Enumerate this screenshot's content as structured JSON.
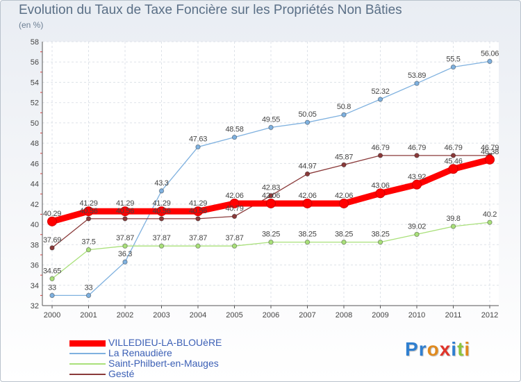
{
  "title": "Evolution du Taux de Taxe Foncière sur les Propriétés Non Bâties",
  "unit_label": "(en %)",
  "brand": {
    "letters": [
      "P",
      "r",
      "o",
      "x",
      "i",
      "t",
      "i"
    ],
    "colors": [
      "#2f7fd0",
      "#2f7fd0",
      "#e08a1e",
      "#e0342a",
      "#2f7fd0",
      "#8cc63e",
      "#e08a1e"
    ]
  },
  "chart_data": {
    "type": "line",
    "title": "Evolution du Taux de Taxe Foncière sur les Propriétés Non Bâties",
    "ylabel": "(en %)",
    "xlabel": "",
    "x": [
      "2000",
      "2001",
      "2002",
      "2003",
      "2004",
      "2005",
      "2006",
      "2007",
      "2008",
      "2009",
      "2010",
      "2011",
      "2012"
    ],
    "ylim": [
      32,
      58
    ],
    "yticks": [
      "32",
      "34",
      "36",
      "38",
      "40",
      "42",
      "44",
      "46",
      "48",
      "50",
      "52",
      "54",
      "56",
      "58"
    ],
    "grid": true,
    "legend_position": "bottom-left",
    "series": [
      {
        "name": "VILLEDIEU-LA-BLOUèRE",
        "color": "#ff0000",
        "values": [
          40.29,
          41.29,
          41.29,
          41.29,
          41.29,
          42.06,
          42.06,
          42.06,
          42.06,
          43.06,
          43.92,
          45.46,
          46.38
        ],
        "labels": [
          "40.29",
          "41.29",
          "41.29",
          "41.29",
          "41.29",
          "42.06",
          "42.06",
          "42.06",
          "42.06",
          "43.06",
          "43.92",
          "45.46",
          "46.38"
        ]
      },
      {
        "name": "La Renaudière",
        "color": "#7fb1df",
        "values": [
          33,
          33,
          36.3,
          43.3,
          47.63,
          48.58,
          49.55,
          50.05,
          50.8,
          52.32,
          53.89,
          55.5,
          56.06
        ],
        "labels": [
          "33",
          "33",
          "36.3",
          "43.3",
          "47.63",
          "48.58",
          "49.55",
          "50.05",
          "50.8",
          "52.32",
          "53.89",
          "55.5",
          "56.06"
        ]
      },
      {
        "name": "Saint-Philbert-en-Mauges",
        "color": "#a9e07a",
        "values": [
          34.65,
          37.5,
          37.87,
          37.87,
          37.87,
          37.87,
          38.25,
          38.25,
          38.25,
          38.25,
          39.02,
          39.8,
          40.2
        ],
        "labels": [
          "34.65",
          "37.5",
          "37.87",
          "37.87",
          "37.87",
          "37.87",
          "38.25",
          "38.25",
          "38.25",
          "38.25",
          "39.02",
          "39.8",
          "40.2"
        ]
      },
      {
        "name": "Gesté",
        "color": "#8a3a3a",
        "values": [
          37.69,
          40.56,
          40.56,
          40.56,
          40.56,
          40.79,
          42.83,
          44.97,
          45.87,
          46.79,
          46.79,
          46.79,
          46.79
        ],
        "labels": [
          "37.69",
          "40.56",
          "40.56",
          "40.56",
          "40.56",
          "40.79",
          "42.83",
          "44.97",
          "45.87",
          "46.79",
          "46.79",
          "46.79",
          "46.79"
        ]
      }
    ]
  }
}
